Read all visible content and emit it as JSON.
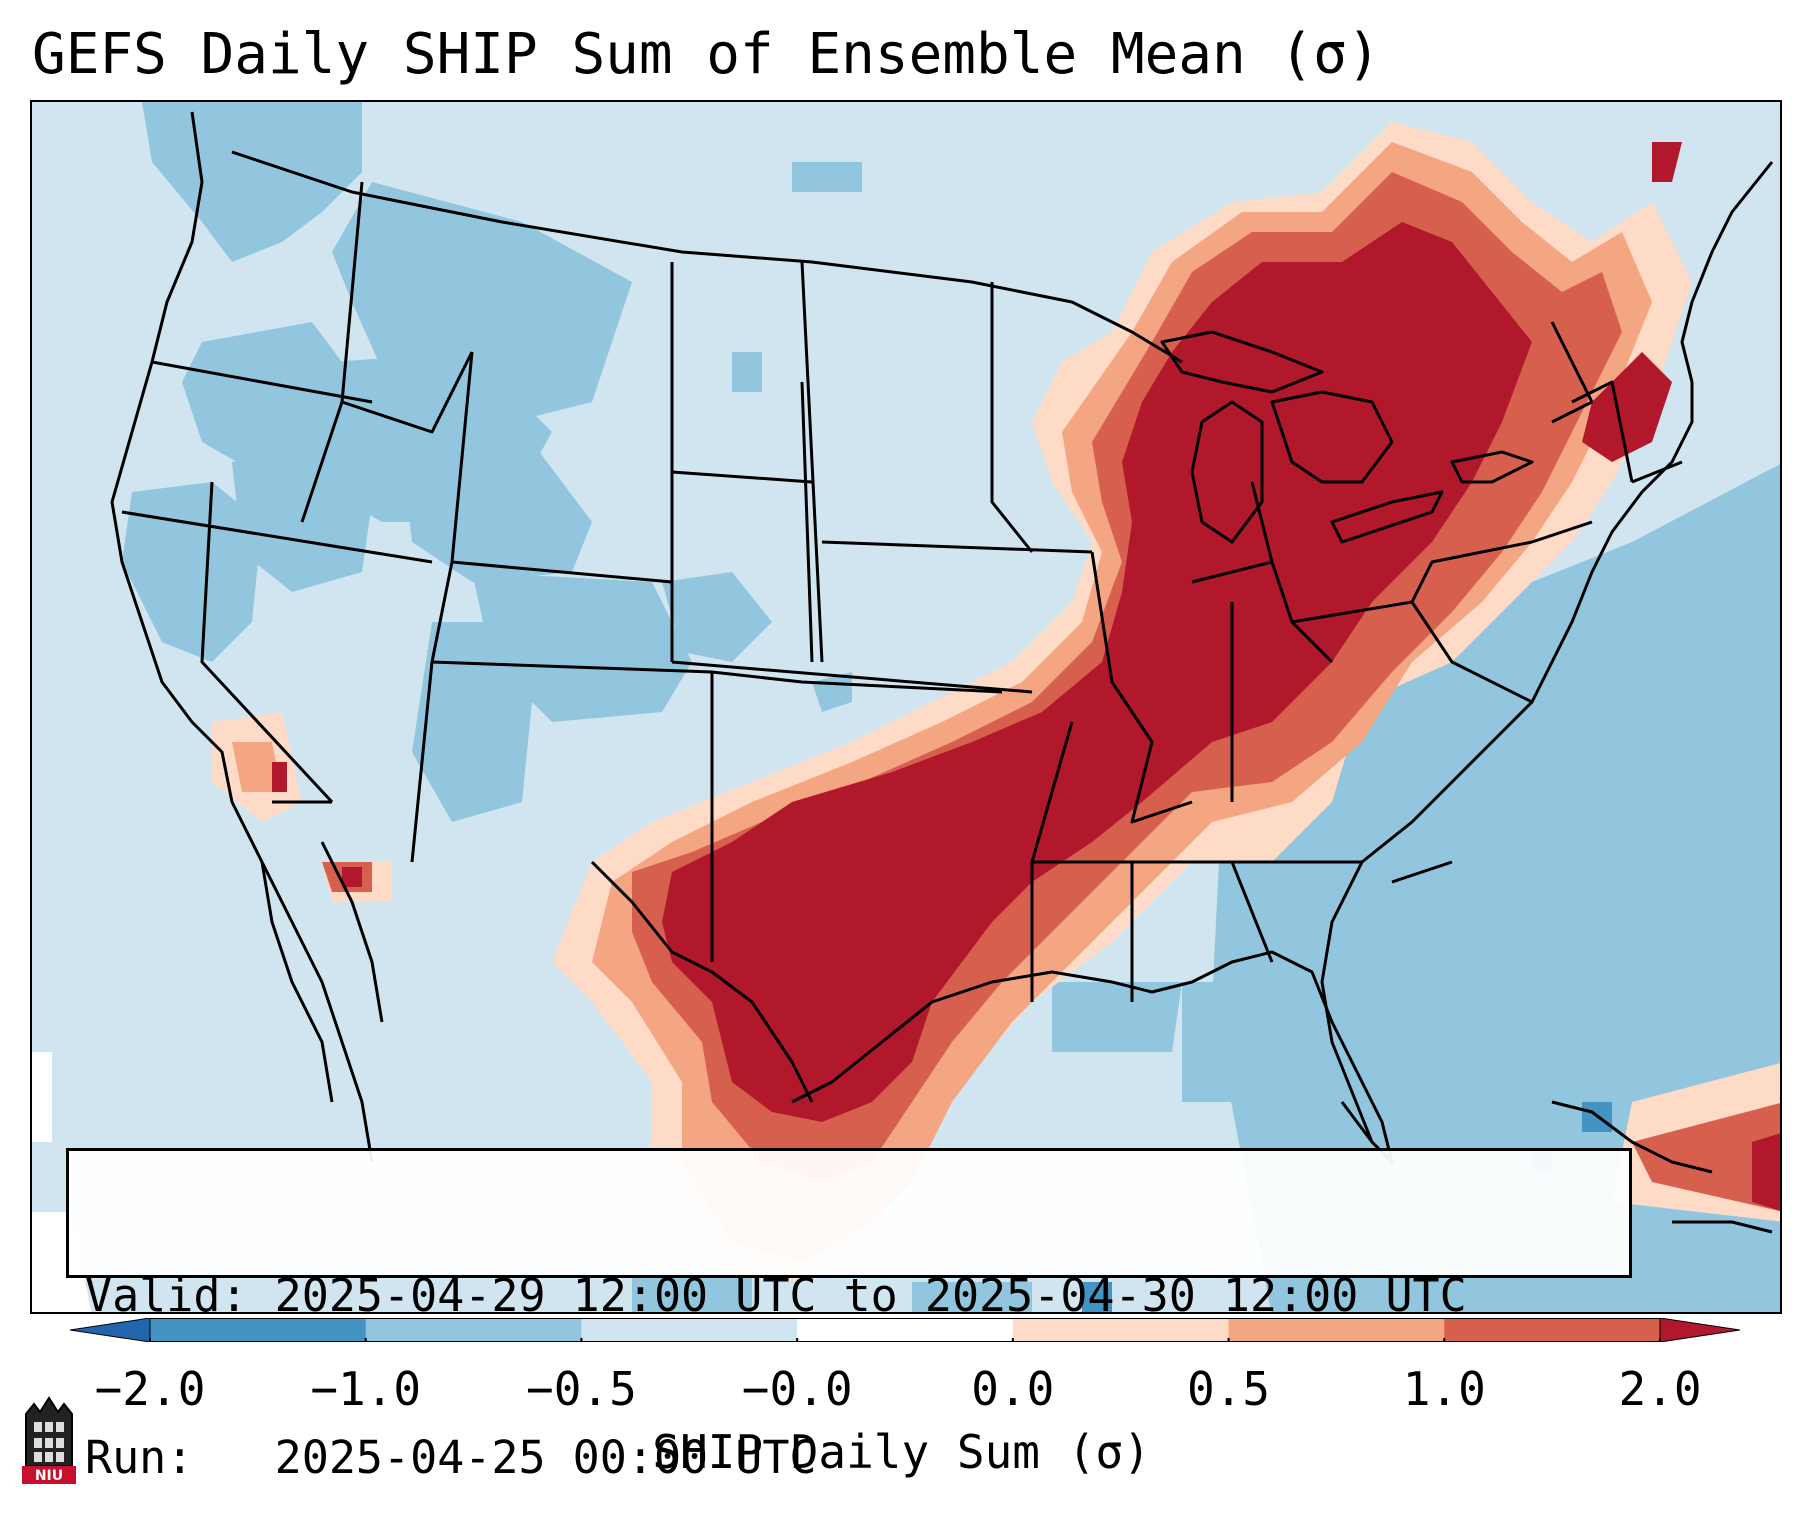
{
  "title": "GEFS Daily SHIP Sum of Ensemble Mean (σ)",
  "info": {
    "valid_label": "Valid: ",
    "valid_value": "2025-04-29 12:00 UTC to 2025-04-30 12:00 UTC",
    "run_label": "Run:   ",
    "run_value": "2025-04-25 00:00 UTC"
  },
  "colorbar": {
    "label": "SHIP Daily Sum (σ)",
    "tick_labels": [
      "−2.0",
      "−1.0",
      "−0.5",
      "−0.0",
      "0.0",
      "0.5",
      "1.0",
      "2.0"
    ],
    "bins": [
      {
        "range": "below -2.0",
        "color": "#2166ac"
      },
      {
        "range": "-2.0 to -1.0",
        "color": "#4393c3"
      },
      {
        "range": "-1.0 to -0.5",
        "color": "#92c5de"
      },
      {
        "range": "-0.5 to -0.0",
        "color": "#d1e5f0"
      },
      {
        "range": "-0.0 to 0.0",
        "color": "#ffffff"
      },
      {
        "range": "0.0 to 0.5",
        "color": "#fddbc7"
      },
      {
        "range": "0.5 to 1.0",
        "color": "#f4a582"
      },
      {
        "range": "1.0 to 2.0",
        "color": "#d6604d"
      },
      {
        "range": "above 2.0",
        "color": "#b2182b"
      }
    ]
  },
  "logo": {
    "name": "NIU",
    "text": "NIU",
    "color": "#c8102e"
  }
}
